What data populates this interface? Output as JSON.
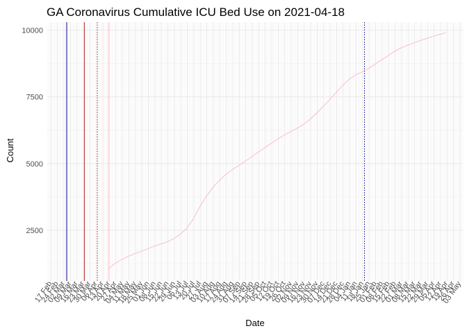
{
  "chart_data": {
    "type": "line",
    "title": "GA Coronavirus Cumulative ICU Bed Use on 2021-04-18",
    "xlabel": "Date",
    "ylabel": "Count",
    "x_axis": {
      "type": "date",
      "range": [
        "2020-02-13",
        "2021-05-06"
      ],
      "tick_dates": [
        "2020-02-17",
        "2020-02-24",
        "2020-03-02",
        "2020-03-09",
        "2020-03-16",
        "2020-03-23",
        "2020-03-30",
        "2020-04-06",
        "2020-04-13",
        "2020-04-20",
        "2020-04-27",
        "2020-05-04",
        "2020-05-11",
        "2020-05-18",
        "2020-05-25",
        "2020-06-01",
        "2020-06-08",
        "2020-06-15",
        "2020-06-22",
        "2020-06-29",
        "2020-07-06",
        "2020-07-13",
        "2020-07-20",
        "2020-07-27",
        "2020-08-03",
        "2020-08-10",
        "2020-08-17",
        "2020-08-24",
        "2020-08-31",
        "2020-09-07",
        "2020-09-14",
        "2020-09-21",
        "2020-09-28",
        "2020-10-05",
        "2020-10-12",
        "2020-10-19",
        "2020-10-26",
        "2020-11-02",
        "2020-11-09",
        "2020-11-16",
        "2020-11-23",
        "2020-11-30",
        "2020-12-07",
        "2020-12-14",
        "2020-12-21",
        "2020-12-28",
        "2021-01-04",
        "2021-01-11",
        "2021-01-18",
        "2021-01-25",
        "2021-02-01",
        "2021-02-08",
        "2021-02-15",
        "2021-02-22",
        "2021-03-01",
        "2021-03-08",
        "2021-03-15",
        "2021-03-22",
        "2021-03-29",
        "2021-04-05",
        "2021-04-12",
        "2021-04-19",
        "2021-04-26",
        "2021-05-03"
      ],
      "tick_labels": [
        "17 Feb",
        "24 Feb",
        "02 Mar",
        "09 Mar",
        "16 Mar",
        "23 Mar",
        "30 Mar",
        "06 Apr",
        "13 Apr",
        "20 Apr",
        "27 Apr",
        "04 May",
        "11 May",
        "18 May",
        "25 May",
        "01 Jun",
        "08 Jun",
        "15 Jun",
        "22 Jun",
        "29 Jun",
        "06 Jul",
        "13 Jul",
        "20 Jul",
        "27 Jul",
        "03 Aug",
        "10 Aug",
        "17 Aug",
        "24 Aug",
        "31 Aug",
        "07 Sep",
        "14 Sep",
        "21 Sep",
        "28 Sep",
        "05 Oct",
        "12 Oct",
        "19 Oct",
        "26 Oct",
        "02 Nov",
        "09 Nov",
        "16 Nov",
        "23 Nov",
        "30 Nov",
        "07 Dec",
        "14 Dec",
        "21 Dec",
        "28 Dec",
        "04 Jan",
        "11 Jan",
        "18 Jan",
        "25 Jan",
        "01 Feb",
        "08 Feb",
        "15 Feb",
        "22 Feb",
        "01 Mar",
        "08 Mar",
        "15 Mar",
        "22 Mar",
        "29 Mar",
        "05 Apr",
        "12 Apr",
        "19 Apr",
        "26 Apr",
        "03 May"
      ]
    },
    "y_axis": {
      "range": [
        600,
        10300
      ],
      "ticks": [
        2500,
        5000,
        7500,
        10000
      ],
      "tick_labels": [
        "2500",
        "5000",
        "7500",
        "10000"
      ]
    },
    "grid": true,
    "reference_lines": [
      {
        "date": "2020-03-05",
        "style": "solid",
        "color": "#00008b"
      },
      {
        "date": "2020-03-24",
        "style": "solid",
        "color": "#b22222"
      },
      {
        "date": "2020-04-07",
        "style": "dotted",
        "color": "#b22222"
      },
      {
        "date": "2020-04-19",
        "style": "solid",
        "color": "#ffc0cb"
      },
      {
        "date": "2021-01-20",
        "style": "dotted",
        "color": "#00008b"
      }
    ],
    "series": [
      {
        "color": "#ffb6c1",
        "points": [
          [
            "2020-04-19",
            1050
          ],
          [
            "2020-04-26",
            1260
          ],
          [
            "2020-05-03",
            1400
          ],
          [
            "2020-05-10",
            1520
          ],
          [
            "2020-05-17",
            1620
          ],
          [
            "2020-05-24",
            1710
          ],
          [
            "2020-05-31",
            1800
          ],
          [
            "2020-06-07",
            1900
          ],
          [
            "2020-06-14",
            1980
          ],
          [
            "2020-06-21",
            2060
          ],
          [
            "2020-06-28",
            2180
          ],
          [
            "2020-07-05",
            2340
          ],
          [
            "2020-07-12",
            2560
          ],
          [
            "2020-07-19",
            2900
          ],
          [
            "2020-07-26",
            3350
          ],
          [
            "2020-08-02",
            3750
          ],
          [
            "2020-08-09",
            4080
          ],
          [
            "2020-08-16",
            4350
          ],
          [
            "2020-08-23",
            4580
          ],
          [
            "2020-08-30",
            4760
          ],
          [
            "2020-09-06",
            4920
          ],
          [
            "2020-09-13",
            5080
          ],
          [
            "2020-09-20",
            5250
          ],
          [
            "2020-09-27",
            5420
          ],
          [
            "2020-10-04",
            5580
          ],
          [
            "2020-10-11",
            5750
          ],
          [
            "2020-10-18",
            5910
          ],
          [
            "2020-10-25",
            6060
          ],
          [
            "2020-11-01",
            6190
          ],
          [
            "2020-11-08",
            6320
          ],
          [
            "2020-11-15",
            6460
          ],
          [
            "2020-11-22",
            6650
          ],
          [
            "2020-11-29",
            6880
          ],
          [
            "2020-12-06",
            7120
          ],
          [
            "2020-12-13",
            7380
          ],
          [
            "2020-12-20",
            7650
          ],
          [
            "2020-12-27",
            7910
          ],
          [
            "2021-01-03",
            8150
          ],
          [
            "2021-01-10",
            8320
          ],
          [
            "2021-01-17",
            8430
          ],
          [
            "2021-01-24",
            8560
          ],
          [
            "2021-01-31",
            8720
          ],
          [
            "2021-02-07",
            8880
          ],
          [
            "2021-02-14",
            9040
          ],
          [
            "2021-02-21",
            9200
          ],
          [
            "2021-02-28",
            9330
          ],
          [
            "2021-03-07",
            9430
          ],
          [
            "2021-03-14",
            9520
          ],
          [
            "2021-03-21",
            9610
          ],
          [
            "2021-03-28",
            9690
          ],
          [
            "2021-04-04",
            9770
          ],
          [
            "2021-04-11",
            9840
          ],
          [
            "2021-04-18",
            9910
          ]
        ]
      }
    ]
  }
}
